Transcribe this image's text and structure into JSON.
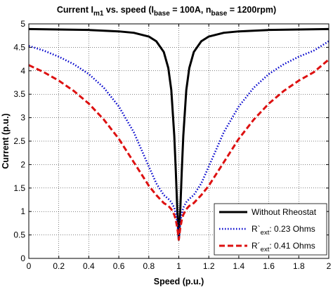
{
  "chart_data": {
    "type": "line",
    "title": {
      "p1": "Current I",
      "p1_sub": "m1",
      "p2": " vs. speed (I",
      "p2_sub": "base",
      "p3": " = 100A, n",
      "p3_sub": "base",
      "p4": " = 1200rpm)"
    },
    "xlabel": "Speed (p.u.)",
    "ylabel": "Current (p.u.)",
    "xlim": [
      0,
      2
    ],
    "ylim": [
      0,
      5
    ],
    "xticks": [
      0,
      0.2,
      0.4,
      0.6,
      0.8,
      1,
      1.2,
      1.4,
      1.6,
      1.8,
      2
    ],
    "xtick_labels": [
      "0",
      "0.2",
      "0.4",
      "0.6",
      "0.8",
      "1",
      "1.2",
      "1.4",
      "1.6",
      "1.8",
      "2"
    ],
    "yticks": [
      0,
      0.5,
      1,
      1.5,
      2,
      2.5,
      3,
      3.5,
      4,
      4.5,
      5
    ],
    "ytick_labels": [
      "0",
      "0.5",
      "1",
      "1.5",
      "2",
      "2.5",
      "3",
      "3.5",
      "4",
      "4.5",
      "5"
    ],
    "grid": true,
    "legend_position": "bottom-right",
    "series": [
      {
        "name": "Without Rheostat",
        "name_parts": [
          "Without Rheostat"
        ],
        "color": "#000000",
        "style": "solid",
        "x": [
          0,
          0.2,
          0.4,
          0.6,
          0.7,
          0.8,
          0.85,
          0.9,
          0.93,
          0.95,
          0.97,
          0.98,
          0.99,
          1.0,
          1.01,
          1.02,
          1.03,
          1.05,
          1.07,
          1.1,
          1.15,
          1.2,
          1.3,
          1.4,
          1.6,
          1.8,
          2.0
        ],
        "y": [
          4.89,
          4.88,
          4.87,
          4.84,
          4.81,
          4.73,
          4.63,
          4.4,
          4.06,
          3.59,
          2.61,
          1.87,
          1.04,
          0.4,
          1.04,
          1.87,
          2.61,
          3.59,
          4.06,
          4.4,
          4.63,
          4.73,
          4.81,
          4.84,
          4.87,
          4.88,
          4.89
        ]
      },
      {
        "name": "R`ext: 0.23 Ohms",
        "name_parts": [
          "R`",
          "ext",
          ": 0.23 Ohms"
        ],
        "color": "#0000cc",
        "style": "dotted",
        "x": [
          0,
          0.1,
          0.2,
          0.3,
          0.4,
          0.5,
          0.6,
          0.7,
          0.8,
          0.85,
          0.9,
          0.93,
          0.95,
          0.97,
          0.98,
          0.99,
          1.0,
          1.01,
          1.02,
          1.03,
          1.05,
          1.07,
          1.1,
          1.15,
          1.2,
          1.3,
          1.4,
          1.5,
          1.6,
          1.7,
          1.8,
          1.9,
          2.0
        ],
        "y": [
          4.53,
          4.43,
          4.3,
          4.14,
          3.93,
          3.64,
          3.24,
          2.69,
          1.96,
          1.6,
          1.35,
          1.27,
          1.2,
          1.08,
          0.95,
          0.75,
          0.4,
          0.75,
          0.95,
          1.08,
          1.2,
          1.27,
          1.35,
          1.6,
          1.96,
          2.69,
          3.24,
          3.64,
          3.93,
          4.14,
          4.3,
          4.43,
          4.63
        ]
      },
      {
        "name": "R´ext: 0.41 Ohms",
        "name_parts": [
          "R´",
          "ext",
          ": 0.41 Ohms"
        ],
        "color": "#dd1111",
        "style": "dashed",
        "x": [
          0,
          0.1,
          0.2,
          0.3,
          0.4,
          0.5,
          0.6,
          0.7,
          0.8,
          0.85,
          0.9,
          0.93,
          0.95,
          0.97,
          0.98,
          0.99,
          1.0,
          1.01,
          1.02,
          1.03,
          1.05,
          1.07,
          1.1,
          1.15,
          1.2,
          1.3,
          1.4,
          1.5,
          1.6,
          1.7,
          1.8,
          1.9,
          2.0
        ],
        "y": [
          4.12,
          3.97,
          3.79,
          3.57,
          3.3,
          2.96,
          2.55,
          2.05,
          1.55,
          1.35,
          1.18,
          1.12,
          1.05,
          0.93,
          0.82,
          0.65,
          0.4,
          0.65,
          0.82,
          0.93,
          1.05,
          1.12,
          1.18,
          1.35,
          1.55,
          2.05,
          2.55,
          2.96,
          3.3,
          3.57,
          3.79,
          3.97,
          4.24
        ]
      }
    ]
  }
}
